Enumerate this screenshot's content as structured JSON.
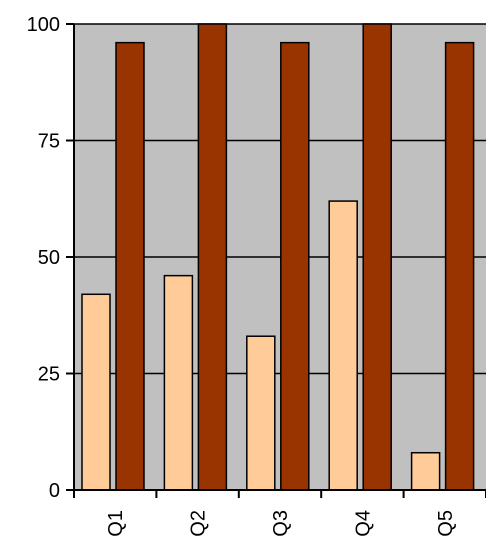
{
  "chart_data": {
    "type": "bar",
    "categories": [
      "Q1",
      "Q2",
      "Q3",
      "Q4",
      "Q5"
    ],
    "series": [
      {
        "values": [
          42,
          46,
          33,
          62,
          8
        ],
        "color": "#FFCC99"
      },
      {
        "values": [
          96,
          100,
          96,
          100,
          96
        ],
        "color": "#993300"
      }
    ],
    "y_ticks": [
      "0",
      "25",
      "50",
      "75",
      "100"
    ],
    "ylim": [
      0,
      100
    ],
    "grid": true,
    "plot_background": "#C0C0C0",
    "legend": "none"
  }
}
